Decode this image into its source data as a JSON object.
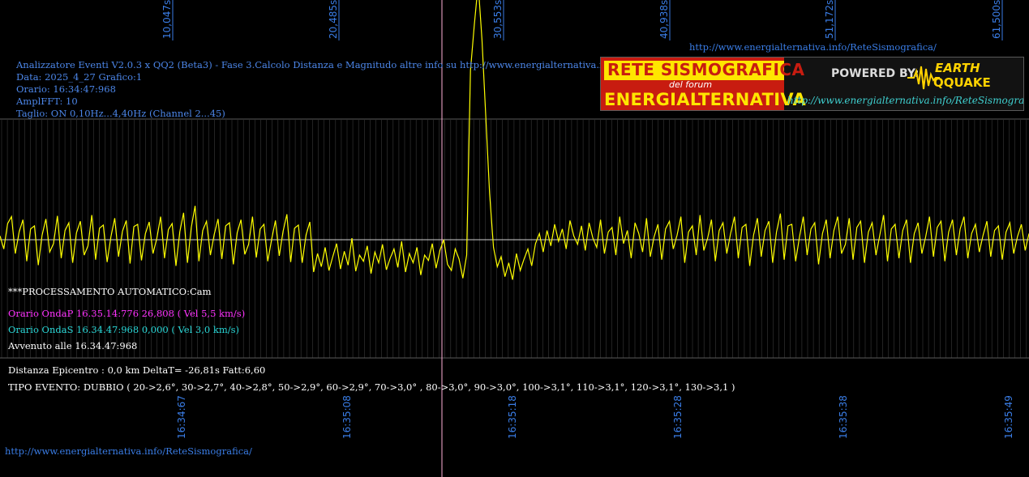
{
  "header": {
    "line1": "Analizzatore Eventi V2.0.3 x QQ2 (Beta3) - Fase 3.Calcolo Distanza e Magnitudo altre info su http://www.energialternativa.info/ReteSism",
    "line2": "Data: 2025_4_27 Grafico:1",
    "line3": "Orario: 16:34:47:968",
    "line4": "AmplFFT: 10",
    "line5": "Taglio: ON 0,10Hz...4,40Hz       (Channel 2...45)"
  },
  "top_url": "http://www.energialternativa.info/ReteSismografica/",
  "bottom_url": "http://www.energialternativa.info/ReteSismografica/",
  "banner": {
    "title1": "RETE SISMOGRAFICA",
    "title2": "del forum",
    "title3": "ENERGIALTERNATIVA",
    "powered": "POWERED BY:",
    "brand1": "EARTH",
    "brand2": "QQUAKE",
    "url": "http://www.energialternativa.info/ReteSismografica"
  },
  "processing": {
    "auto": "***PROCESSAMENTO AUTOMATICO:Cam",
    "onda_p": "Orario OndaP 16.35.14:776  26,808 ( Vel 5,5 km/s)",
    "onda_s": "Orario OndaS 16.34.47:968  0,000 ( Vel 3,0 km/s)",
    "avvenuto": "Avvenuto alle 16.34.47:968",
    "distanza": "Distanza Epicentro : 0,0 km DeltaT= -26,81s  Fatt:6,60",
    "tipo": "TIPO EVENTO: DUBBIO ( 20->2,6°, 30->2,7°, 40->2,8°, 50->2,9°, 60->2,9°, 70->3,0° , 80->3,0°, 90->3,0°, 100->3,1°, 110->3,1°, 120->3,1°, 130->3,1 )"
  },
  "colors": {
    "background": "#000000",
    "trace": "#ffff00",
    "grid": "#5a5a5a",
    "axis_labels": "#3a7de6",
    "marker": "#ffb0d8"
  },
  "chart_data": {
    "type": "line",
    "top_ticks": [
      "10,047s",
      "20,485s",
      "30,553s",
      "40,938s",
      "51,172s",
      "61,500s"
    ],
    "bottom_ticks": [
      "16:34:67",
      "16:35:08",
      "16:35:18",
      "16:35:28",
      "16:35:38",
      "16:35:49"
    ],
    "series": [
      {
        "values": [
          0.05,
          -0.12,
          0.21,
          0.3,
          -0.18,
          0.1,
          0.26,
          -0.28,
          0.14,
          0.18,
          -0.33,
          0.06,
          0.27,
          -0.16,
          -0.05,
          0.31,
          -0.24,
          0.12,
          0.22,
          -0.3,
          0.09,
          0.24,
          -0.2,
          -0.08,
          0.32,
          -0.26,
          0.15,
          0.19,
          -0.29,
          0.04,
          0.28,
          -0.22,
          0.11,
          0.25,
          -0.31,
          0.17,
          0.2,
          -0.27,
          0.08,
          0.23,
          -0.18,
          0.02,
          0.3,
          -0.24,
          0.13,
          0.21,
          -0.34,
          0.1,
          0.35,
          -0.3,
          0.16,
          0.44,
          -0.28,
          0.12,
          0.24,
          -0.2,
          0.07,
          0.27,
          -0.25,
          0.18,
          0.22,
          -0.32,
          0.09,
          0.26,
          -0.19,
          -0.06,
          0.3,
          -0.23,
          0.14,
          0.2,
          -0.28,
          0.0,
          0.25,
          -0.21,
          0.11,
          0.33,
          -0.29,
          0.15,
          0.19,
          -0.3,
          0.06,
          0.23,
          -0.42,
          -0.18,
          -0.35,
          -0.1,
          -0.4,
          -0.22,
          -0.05,
          -0.38,
          -0.15,
          -0.33,
          0.02,
          -0.41,
          -0.2,
          -0.28,
          -0.08,
          -0.44,
          -0.16,
          -0.3,
          -0.06,
          -0.39,
          -0.24,
          -0.12,
          -0.36,
          -0.02,
          -0.42,
          -0.18,
          -0.3,
          -0.1,
          -0.46,
          -0.2,
          -0.27,
          -0.05,
          -0.37,
          -0.14,
          0.0,
          -0.32,
          -0.4,
          -0.12,
          -0.25,
          -0.5,
          -0.2,
          2.2,
          2.8,
          3.4,
          2.6,
          1.6,
          0.6,
          -0.1,
          -0.35,
          -0.22,
          -0.48,
          -0.3,
          -0.52,
          -0.18,
          -0.4,
          -0.25,
          -0.12,
          -0.34,
          -0.05,
          0.08,
          -0.16,
          0.12,
          -0.08,
          0.2,
          -0.02,
          0.14,
          -0.12,
          0.25,
          0.05,
          -0.06,
          0.18,
          -0.14,
          0.22,
          0.02,
          -0.1,
          0.26,
          -0.18,
          0.1,
          0.16,
          -0.2,
          0.3,
          -0.05,
          0.12,
          -0.24,
          0.22,
          0.08,
          -0.16,
          0.28,
          -0.22,
          0.04,
          0.2,
          -0.26,
          0.14,
          0.24,
          -0.12,
          0.06,
          0.3,
          -0.3,
          0.1,
          0.18,
          -0.2,
          0.32,
          -0.14,
          0.02,
          0.26,
          -0.28,
          0.12,
          0.22,
          -0.18,
          0.08,
          0.3,
          -0.24,
          0.16,
          0.2,
          -0.34,
          0.06,
          0.28,
          -0.22,
          0.12,
          0.24,
          -0.3,
          0.1,
          0.34,
          -0.26,
          0.18,
          0.2,
          -0.28,
          0.04,
          0.3,
          -0.2,
          0.14,
          0.22,
          -0.32,
          0.08,
          0.26,
          -0.24,
          0.12,
          0.3,
          -0.18,
          -0.06,
          0.28,
          -0.26,
          0.16,
          0.24,
          -0.3,
          0.1,
          0.22,
          -0.2,
          0.06,
          0.32,
          -0.28,
          0.14,
          0.2,
          -0.24,
          0.12,
          0.26,
          -0.3,
          0.08,
          0.22,
          -0.18,
          0.04,
          0.3,
          -0.22,
          0.16,
          0.24,
          -0.28,
          0.1,
          0.26,
          -0.2,
          0.14,
          0.3,
          -0.24,
          0.08,
          0.2,
          -0.16,
          0.06,
          0.24,
          -0.22,
          0.12,
          0.18,
          -0.26,
          0.1,
          0.22,
          -0.18,
          0.04,
          0.2,
          -0.14,
          0.08
        ]
      }
    ],
    "grid": true
  }
}
